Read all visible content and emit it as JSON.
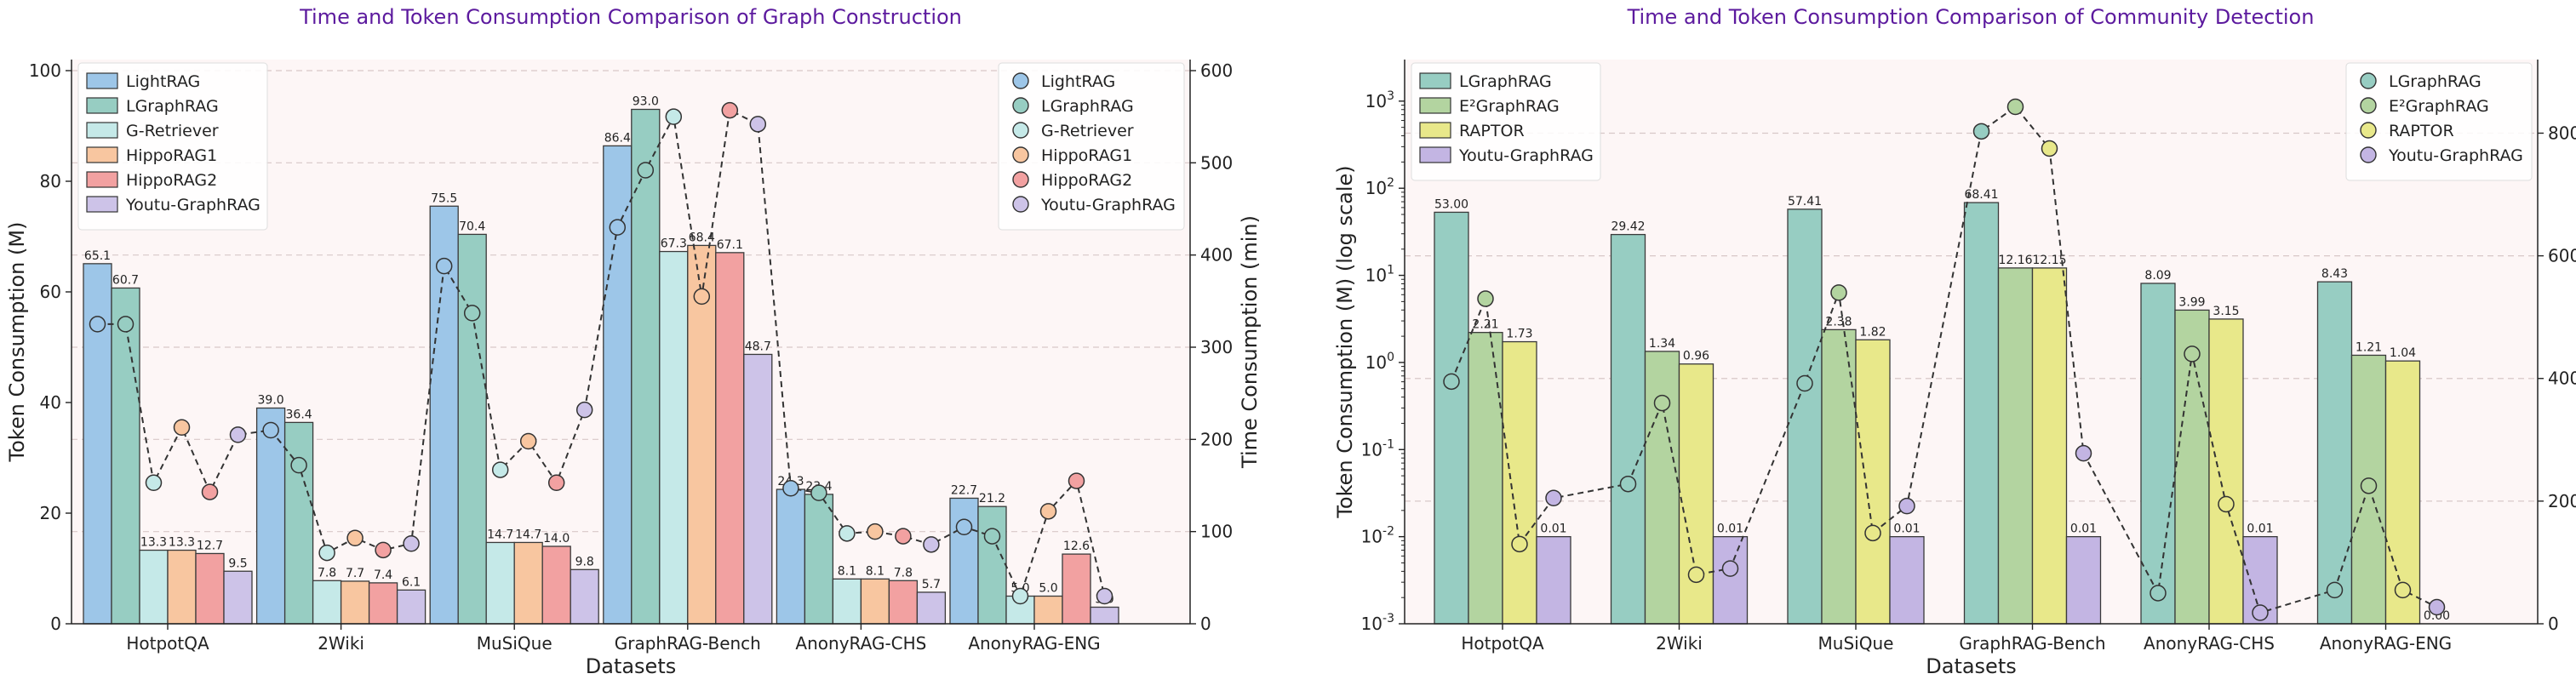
{
  "chart_data": [
    {
      "type": "bar",
      "title": "Time and Token Consumption Comparison of Graph Construction",
      "xlabel": "Datasets",
      "ylabel": "Token Consumption (M)",
      "y2label": "Time Consumption (min)",
      "ylim": [
        0,
        102
      ],
      "y2lim": [
        0,
        612
      ],
      "yticks": [
        0,
        20,
        40,
        60,
        80,
        100
      ],
      "y2ticks": [
        0,
        100,
        200,
        300,
        400,
        500,
        600
      ],
      "grid": true,
      "legend_bar": "top-left",
      "legend_line": "top-right",
      "categories": [
        "HotpotQA",
        "2Wiki",
        "MuSiQue",
        "GraphRAG-Bench",
        "AnonyRAG-CHS",
        "AnonyRAG-ENG"
      ],
      "series": [
        {
          "name": "LightRAG",
          "color": "#9dc6e8",
          "values": [
            65.1,
            39.0,
            75.5,
            86.4,
            24.3,
            22.7
          ],
          "labels": [
            "65.1",
            "39.0",
            "75.5",
            "86.4",
            "24.3",
            "22.7"
          ],
          "time": [
            325,
            210,
            388,
            430,
            147,
            105
          ]
        },
        {
          "name": "LGraphRAG",
          "color": "#97cdc2",
          "values": [
            60.7,
            36.4,
            70.4,
            93.0,
            23.4,
            21.2
          ],
          "labels": [
            "60.7",
            "36.4",
            "70.4",
            "93.0",
            "23.4",
            "21.2"
          ],
          "time": [
            325,
            172,
            337,
            492,
            142,
            95
          ]
        },
        {
          "name": "G-Retriever",
          "color": "#c5e9e8",
          "values": [
            13.3,
            7.8,
            14.7,
            67.3,
            8.1,
            5.0
          ],
          "labels": [
            "13.3",
            "7.8",
            "14.7",
            "67.3",
            "8.1",
            "5.0"
          ],
          "time": [
            153,
            77,
            167,
            550,
            98,
            30
          ]
        },
        {
          "name": "HippoRAG1",
          "color": "#f8c6a0",
          "values": [
            13.3,
            7.7,
            14.7,
            68.4,
            8.1,
            5.0
          ],
          "labels": [
            "13.3",
            "7.7",
            "14.7",
            "68.4",
            "8.1",
            "5.0"
          ],
          "time": [
            213,
            93,
            198,
            355,
            100,
            122
          ]
        },
        {
          "name": "HippoRAG2",
          "color": "#f2a1a1",
          "values": [
            12.7,
            7.4,
            14.0,
            67.1,
            7.8,
            12.6
          ],
          "labels": [
            "12.7",
            "7.4",
            "14.0",
            "67.1",
            "7.8",
            "12.6"
          ],
          "time": [
            143,
            80,
            153,
            557,
            95,
            155
          ]
        },
        {
          "name": "Youtu-GraphRAG",
          "color": "#cdc3e8",
          "values": [
            9.5,
            6.1,
            9.8,
            48.7,
            5.7,
            3.0
          ],
          "labels": [
            "9.5",
            "6.1",
            "9.8",
            "48.7",
            "5.7",
            "3.0"
          ],
          "time": [
            205,
            87,
            232,
            542,
            86,
            30
          ]
        }
      ]
    },
    {
      "type": "bar",
      "scale": "log",
      "title": "Time and Token Consumption Comparison of Community Detection",
      "xlabel": "Datasets",
      "ylabel": "Token Consumption (M) (log scale)",
      "y2label": "Time Consumption (min)",
      "ylim": [
        0.001,
        3000
      ],
      "y2lim": [
        0,
        920
      ],
      "yticks": [
        -3,
        -2,
        -1,
        0,
        1,
        2,
        3
      ],
      "y2ticks": [
        0,
        200,
        400,
        600,
        800
      ],
      "grid": true,
      "legend_bar": "top-left",
      "legend_line": "top-right",
      "categories": [
        "HotpotQA",
        "2Wiki",
        "MuSiQue",
        "GraphRAG-Bench",
        "AnonyRAG-CHS",
        "AnonyRAG-ENG"
      ],
      "series": [
        {
          "name": "LGraphRAG",
          "color": "#97cdc2",
          "values": [
            53.0,
            29.42,
            57.41,
            68.41,
            8.09,
            8.43
          ],
          "labels": [
            "53.00",
            "29.42",
            "57.41",
            "68.41",
            "8.09",
            "8.43"
          ],
          "time": [
            395,
            228,
            392,
            803,
            50,
            55
          ]
        },
        {
          "name": "E²GraphRAG",
          "color": "#b3d4a0",
          "values": [
            2.21,
            1.34,
            2.38,
            12.16,
            3.99,
            1.21
          ],
          "labels": [
            "2.21",
            "1.34",
            "2.38",
            "12.16",
            "3.99",
            "1.21"
          ],
          "time": [
            530,
            360,
            540,
            843,
            440,
            225
          ]
        },
        {
          "name": "RAPTOR",
          "color": "#e8e88a",
          "values": [
            1.73,
            0.96,
            1.82,
            12.15,
            3.15,
            1.04
          ],
          "labels": [
            "1.73",
            "0.96",
            "1.82",
            "12.15",
            "3.15",
            "1.04"
          ],
          "time": [
            130,
            80,
            148,
            775,
            195,
            55
          ]
        },
        {
          "name": "Youtu-GraphRAG",
          "color": "#c3b5e3",
          "values": [
            0.01,
            0.01,
            0.01,
            0.01,
            0.01,
            0.0
          ],
          "labels": [
            "0.01",
            "0.01",
            "0.01",
            "0.01",
            "0.01",
            "0.00"
          ],
          "time": [
            205,
            90,
            192,
            278,
            18,
            27
          ]
        }
      ]
    }
  ]
}
